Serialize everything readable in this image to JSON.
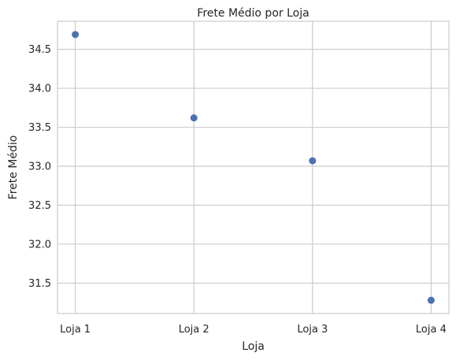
{
  "chart_data": {
    "type": "scatter",
    "title": "Frete Médio por Loja",
    "xlabel": "Loja",
    "ylabel": "Frete Médio",
    "categories": [
      "Loja 1",
      "Loja 2",
      "Loja 3",
      "Loja 4"
    ],
    "series": [
      {
        "values": [
          34.69,
          33.62,
          33.07,
          31.28
        ]
      }
    ],
    "yticks": [
      31.5,
      32.0,
      32.5,
      33.0,
      33.5,
      34.0,
      34.5
    ],
    "ytick_labels": [
      "31.5",
      "32.0",
      "32.5",
      "33.0",
      "33.5",
      "34.0",
      "34.5"
    ],
    "ylim": [
      31.11,
      34.86
    ],
    "grid": true,
    "colors": {
      "marker": "#4c72b0",
      "grid": "#cccccc",
      "text": "#262626"
    }
  }
}
